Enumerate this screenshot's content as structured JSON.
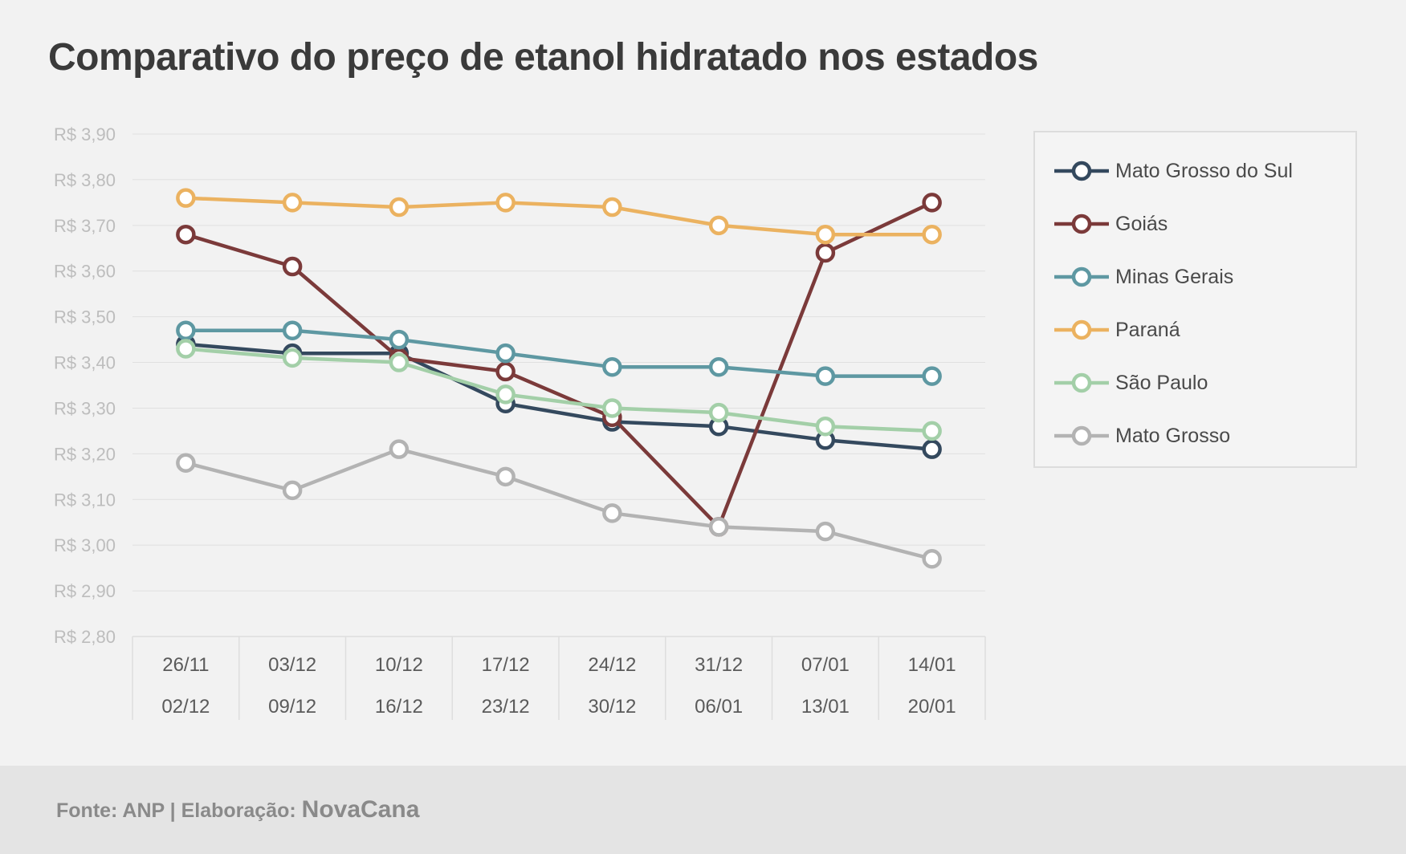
{
  "footer": {
    "source_text": "Fonte: ANP | Elaboração: ",
    "brand": "NovaCana"
  },
  "chart_data": {
    "type": "line",
    "title": "Comparativo do preço de etanol hidratado nos estados",
    "xlabel": "",
    "ylabel": "",
    "categories": [
      [
        "26/11",
        "02/12"
      ],
      [
        "03/12",
        "09/12"
      ],
      [
        "10/12",
        "16/12"
      ],
      [
        "17/12",
        "23/12"
      ],
      [
        "24/12",
        "30/12"
      ],
      [
        "31/12",
        "06/01"
      ],
      [
        "07/01",
        "13/01"
      ],
      [
        "14/01",
        "20/01"
      ]
    ],
    "ylim": [
      2.8,
      3.9
    ],
    "yticks": [
      3.9,
      3.8,
      3.7,
      3.6,
      3.5,
      3.4,
      3.3,
      3.2,
      3.1,
      3.0,
      2.9,
      2.8
    ],
    "ytick_labels": [
      "R$ 3,90",
      "R$ 3,80",
      "R$ 3,70",
      "R$ 3,60",
      "R$ 3,50",
      "R$ 3,40",
      "R$ 3,30",
      "R$ 3,20",
      "R$ 3,10",
      "R$ 3,00",
      "R$ 2,90",
      "R$ 2,80"
    ],
    "grid": true,
    "legend_position": "right",
    "series": [
      {
        "name": "Mato Grosso do Sul",
        "color": "#34495e",
        "values": [
          3.44,
          3.42,
          3.42,
          3.31,
          3.27,
          3.26,
          3.23,
          3.21
        ]
      },
      {
        "name": "Goiás",
        "color": "#7b3a3a",
        "values": [
          3.68,
          3.61,
          3.41,
          3.38,
          3.28,
          3.04,
          3.64,
          3.75
        ]
      },
      {
        "name": "Minas Gerais",
        "color": "#5e98a2",
        "values": [
          3.47,
          3.47,
          3.45,
          3.42,
          3.39,
          3.39,
          3.37,
          3.37
        ]
      },
      {
        "name": "Paraná",
        "color": "#ebb260",
        "values": [
          3.76,
          3.75,
          3.74,
          3.75,
          3.74,
          3.7,
          3.68,
          3.68
        ]
      },
      {
        "name": "São Paulo",
        "color": "#a3cfa8",
        "values": [
          3.43,
          3.41,
          3.4,
          3.33,
          3.3,
          3.29,
          3.26,
          3.25
        ]
      },
      {
        "name": "Mato Grosso",
        "color": "#b3b3b3",
        "values": [
          3.18,
          3.12,
          3.21,
          3.15,
          3.07,
          3.04,
          3.03,
          2.97
        ]
      }
    ]
  }
}
